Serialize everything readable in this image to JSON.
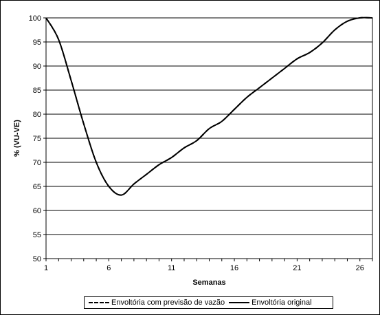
{
  "chart_data": {
    "type": "line",
    "title": "",
    "xlabel": "Semanas",
    "ylabel": "% (VU-VE)",
    "xlim": [
      1,
      27
    ],
    "ylim": [
      50,
      100
    ],
    "x_ticks": [
      1,
      6,
      11,
      16,
      21,
      26
    ],
    "y_ticks": [
      50,
      55,
      60,
      65,
      70,
      75,
      80,
      85,
      90,
      95,
      100
    ],
    "grid": "horizontal",
    "legend_position": "bottom",
    "series": [
      {
        "name": "Envoltória com previsão de vazão",
        "style": "dashed",
        "x": [
          1,
          2,
          3,
          4,
          5,
          6,
          7,
          8,
          9,
          10,
          11,
          12,
          13,
          14,
          15,
          16,
          17,
          18,
          19,
          20,
          21,
          22,
          23,
          24,
          25,
          26,
          27
        ],
        "y": [
          100,
          95.5,
          87,
          78,
          70,
          65,
          63.2,
          65.5,
          67.5,
          69.5,
          71,
          73,
          74.5,
          77,
          78.5,
          81,
          83.5,
          85.5,
          87.5,
          89.5,
          91.5,
          92.8,
          94.8,
          97.5,
          99.3,
          100,
          100
        ]
      },
      {
        "name": "Envoltória original",
        "style": "solid",
        "x": [
          1,
          2,
          3,
          4,
          5,
          6,
          7,
          8,
          9,
          10,
          11,
          12,
          13,
          14,
          15,
          16,
          17,
          18,
          19,
          20,
          21,
          22,
          23,
          24,
          25,
          26,
          27
        ],
        "y": [
          100,
          95.5,
          87,
          78,
          70,
          65,
          63.2,
          65.5,
          67.5,
          69.5,
          71,
          73,
          74.5,
          77,
          78.5,
          81,
          83.5,
          85.5,
          87.5,
          89.5,
          91.5,
          92.8,
          94.8,
          97.5,
          99.3,
          100,
          100
        ]
      }
    ],
    "colors": {
      "line": "#000000",
      "grid": "#000000",
      "plot_bg": "#ffffff"
    }
  }
}
